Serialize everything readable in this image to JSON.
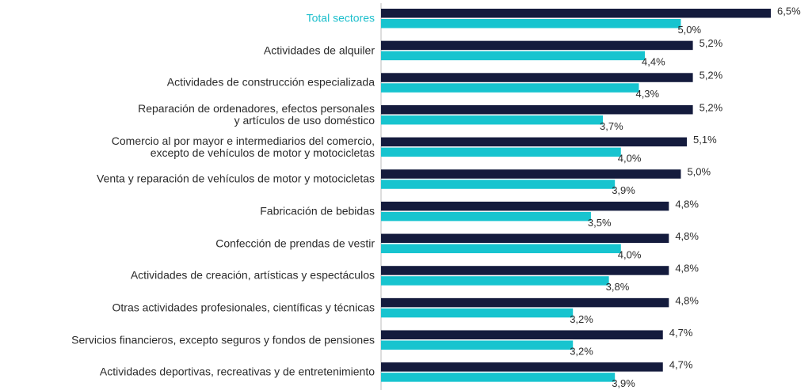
{
  "chart_data": {
    "type": "bar",
    "orientation": "horizontal",
    "categories": [
      "Total sectores",
      "Actividades de alquiler",
      "Actividades de construcción especializada",
      "Reparación de ordenadores, efectos personales\ny artículos de uso doméstico",
      "Comercio al por mayor e intermediarios del comercio,\nexcepto de vehículos de motor y motocicletas",
      "Venta y reparación de vehículos de motor y motocicletas",
      "Fabricación de bebidas",
      "Confección de prendas de vestir",
      "Actividades de creación, artísticas y espectáculos",
      "Otras actividades profesionales, científicas y técnicas",
      "Servicios financieros, excepto seguros y fondos de pensiones",
      "Actividades deportivas, recreativas y de entretenimiento"
    ],
    "label_colors": [
      "#1dbfcc",
      "#2b2b2b",
      "#2b2b2b",
      "#2b2b2b",
      "#2b2b2b",
      "#2b2b2b",
      "#2b2b2b",
      "#2b2b2b",
      "#2b2b2b",
      "#2b2b2b",
      "#2b2b2b",
      "#2b2b2b"
    ],
    "series": [
      {
        "color": "#141b3d",
        "values": [
          6.5,
          5.2,
          5.2,
          5.2,
          5.1,
          5.0,
          4.8,
          4.8,
          4.8,
          4.8,
          4.7,
          4.7
        ],
        "value_labels": [
          "6,5%",
          "5,2%",
          "5,2%",
          "5,2%",
          "5,1%",
          "5,0%",
          "4,8%",
          "4,8%",
          "4,8%",
          "4,8%",
          "4,7%",
          "4,7%"
        ]
      },
      {
        "color": "#17c4cf",
        "values": [
          5.0,
          4.4,
          4.3,
          3.7,
          4.0,
          3.9,
          3.5,
          4.0,
          3.8,
          3.2,
          3.2,
          3.9
        ],
        "value_labels": [
          "5,0%",
          "4,4%",
          "4,3%",
          "3,7%",
          "4,0%",
          "3,9%",
          "3,5%",
          "4,0%",
          "3,8%",
          "3,2%",
          "3,2%",
          "3,9%"
        ]
      }
    ],
    "xlim": [
      0,
      6.5
    ]
  }
}
